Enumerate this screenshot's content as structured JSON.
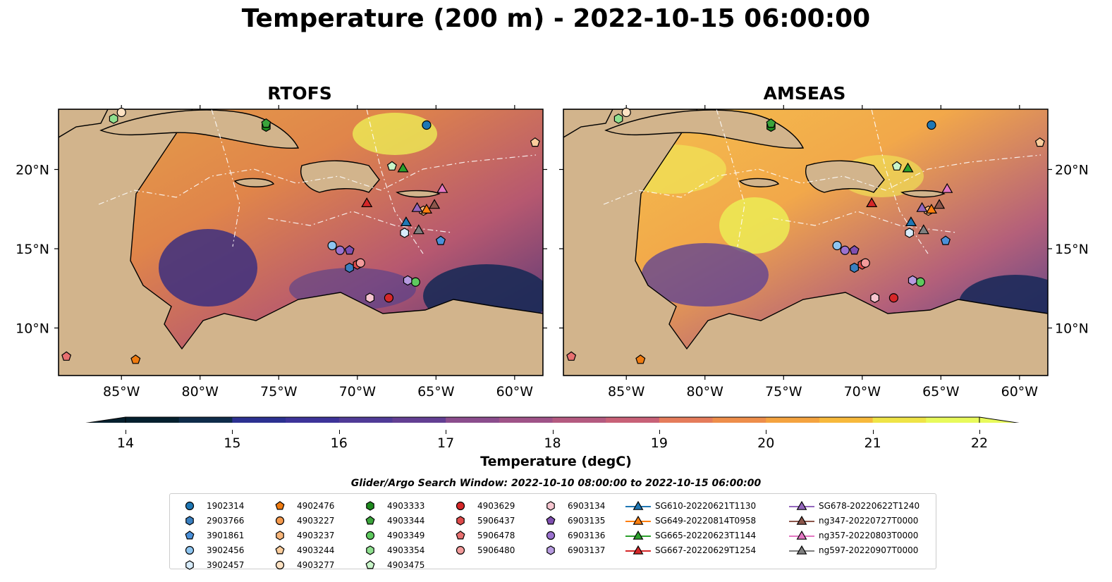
{
  "title": "Temperature (200 m) - 2022-10-15 06:00:00",
  "panels": [
    {
      "title": "RTOFS"
    },
    {
      "title": "AMSEAS"
    }
  ],
  "axes": {
    "lon_labels": [
      "85°W",
      "80°W",
      "75°W",
      "70°W",
      "65°W",
      "60°W"
    ],
    "lon_values": [
      -85,
      -80,
      -75,
      -70,
      -65,
      -60
    ],
    "lat_labels": [
      "20°N",
      "15°N",
      "10°N"
    ],
    "lat_values": [
      20,
      15,
      10
    ],
    "lon_range": [
      -89,
      -58.2
    ],
    "lat_range": [
      7.0,
      23.8
    ]
  },
  "colorbar": {
    "label": "Temperature (degC)",
    "ticks": [
      "14",
      "15",
      "16",
      "17",
      "18",
      "19",
      "20",
      "21",
      "22"
    ],
    "range": [
      14,
      22
    ],
    "colormap": "thermal",
    "extend": "both"
  },
  "search_window": "Glider/Argo Search Window: 2022-10-10 08:00:00 to 2022-10-15 06:00:00",
  "colors": {
    "land": "#d2b48c",
    "shallow": "#95b4e0",
    "white_contours": "#ffffff"
  },
  "legend": [
    [
      {
        "label": "1902314",
        "marker": "circle",
        "color": "#1f77b4"
      },
      {
        "label": "2903766",
        "marker": "hexagon",
        "color": "#3a7fc0"
      },
      {
        "label": "3901861",
        "marker": "pentagon",
        "color": "#4a90d9"
      },
      {
        "label": "3902456",
        "marker": "circle",
        "color": "#8ec5f0"
      },
      {
        "label": "3902457",
        "marker": "hexagon",
        "color": "#d8ecfb"
      }
    ],
    [
      {
        "label": "4902476",
        "marker": "pentagon",
        "color": "#ef7b10"
      },
      {
        "label": "4903227",
        "marker": "circle",
        "color": "#f59a4d"
      },
      {
        "label": "4903237",
        "marker": "hexagon",
        "color": "#f8b67a"
      },
      {
        "label": "4903244",
        "marker": "pentagon",
        "color": "#fbcd9c"
      },
      {
        "label": "4903277",
        "marker": "circle",
        "color": "#fde2c3"
      }
    ],
    [
      {
        "label": "4903333",
        "marker": "hexagon",
        "color": "#1e8a1e"
      },
      {
        "label": "4903344",
        "marker": "pentagon",
        "color": "#3ba43b"
      },
      {
        "label": "4903349",
        "marker": "circle",
        "color": "#5ec95e"
      },
      {
        "label": "4903354",
        "marker": "hexagon",
        "color": "#8fe08f"
      },
      {
        "label": "4903475",
        "marker": "pentagon",
        "color": "#c9f5c9"
      }
    ],
    [
      {
        "label": "4903629",
        "marker": "circle",
        "color": "#d62728"
      },
      {
        "label": "5906437",
        "marker": "hexagon",
        "color": "#de4a4a"
      },
      {
        "label": "5906478",
        "marker": "pentagon",
        "color": "#e87070"
      },
      {
        "label": "5906480",
        "marker": "circle",
        "color": "#f39b9b"
      }
    ],
    [
      {
        "label": "6903134",
        "marker": "hexagon",
        "color": "#f7c6d0"
      },
      {
        "label": "6903135",
        "marker": "pentagon",
        "color": "#7f4fb0"
      },
      {
        "label": "6903136",
        "marker": "circle",
        "color": "#9b72cf"
      },
      {
        "label": "6903137",
        "marker": "hexagon",
        "color": "#b79be0"
      }
    ],
    [
      {
        "label": "SG610-20220621T1130",
        "marker": "triangle",
        "color": "#1f77b4"
      },
      {
        "label": "SG649-20220814T0958",
        "marker": "triangle",
        "color": "#ff7f0e"
      },
      {
        "label": "SG665-20220623T1144",
        "marker": "triangle",
        "color": "#2ca02c"
      },
      {
        "label": "SG667-20220629T1254",
        "marker": "triangle",
        "color": "#d62728"
      }
    ],
    [
      {
        "label": "SG678-20220622T1240",
        "marker": "triangle",
        "color": "#9467bd"
      },
      {
        "label": "ng347-20220727T0000",
        "marker": "triangle",
        "color": "#8c564b"
      },
      {
        "label": "ng357-20220803T0000",
        "marker": "triangle",
        "color": "#e377c2"
      },
      {
        "label": "ng597-20220907T0000",
        "marker": "triangle",
        "color": "#7f7f7f"
      }
    ]
  ],
  "observations": [
    {
      "id": "1902314",
      "lon": -65.6,
      "lat": 22.8
    },
    {
      "id": "2903766",
      "lon": -70.5,
      "lat": 13.8
    },
    {
      "id": "3901861",
      "lon": -64.7,
      "lat": 15.5
    },
    {
      "id": "3902456",
      "lon": -71.6,
      "lat": 15.2
    },
    {
      "id": "3902457",
      "lon": -67.0,
      "lat": 16.0
    },
    {
      "id": "4902476",
      "lon": -84.1,
      "lat": 8.0
    },
    {
      "id": "4903237",
      "lon": -65.8,
      "lat": 17.4
    },
    {
      "id": "4903244",
      "lon": -58.7,
      "lat": 21.7
    },
    {
      "id": "4903277",
      "lon": -85.0,
      "lat": 23.6
    },
    {
      "id": "4903333",
      "lon": -75.8,
      "lat": 22.7
    },
    {
      "id": "4903344",
      "lon": -75.8,
      "lat": 22.9
    },
    {
      "id": "4903349",
      "lon": -66.3,
      "lat": 12.9
    },
    {
      "id": "4903354",
      "lon": -85.5,
      "lat": 23.2
    },
    {
      "id": "4903475",
      "lon": -67.8,
      "lat": 20.2
    },
    {
      "id": "4903629",
      "lon": -68.0,
      "lat": 11.9
    },
    {
      "id": "5906437",
      "lon": -70.0,
      "lat": 14.0
    },
    {
      "id": "5906478",
      "lon": -88.5,
      "lat": 8.2
    },
    {
      "id": "5906480",
      "lon": -69.8,
      "lat": 14.1
    },
    {
      "id": "6903134",
      "lon": -69.2,
      "lat": 11.9
    },
    {
      "id": "6903135",
      "lon": -70.5,
      "lat": 14.9
    },
    {
      "id": "6903136",
      "lon": -71.1,
      "lat": 14.9
    },
    {
      "id": "6903137",
      "lon": -66.8,
      "lat": 13.0
    }
  ],
  "gliders": [
    {
      "id": "SG610-20220621T1130",
      "lon": -66.9,
      "lat": 16.7
    },
    {
      "id": "SG649-20220814T0958",
      "lon": -65.6,
      "lat": 17.5
    },
    {
      "id": "SG665-20220623T1144",
      "lon": -67.1,
      "lat": 20.1
    },
    {
      "id": "SG667-20220629T1254",
      "lon": -69.4,
      "lat": 17.9
    },
    {
      "id": "SG678-20220622T1240",
      "lon": -66.2,
      "lat": 17.6
    },
    {
      "id": "ng347-20220727T0000",
      "lon": -65.1,
      "lat": 17.8
    },
    {
      "id": "ng357-20220803T0000",
      "lon": -64.6,
      "lat": 18.8
    },
    {
      "id": "ng597-20220907T0000",
      "lon": -66.1,
      "lat": 16.2
    }
  ]
}
